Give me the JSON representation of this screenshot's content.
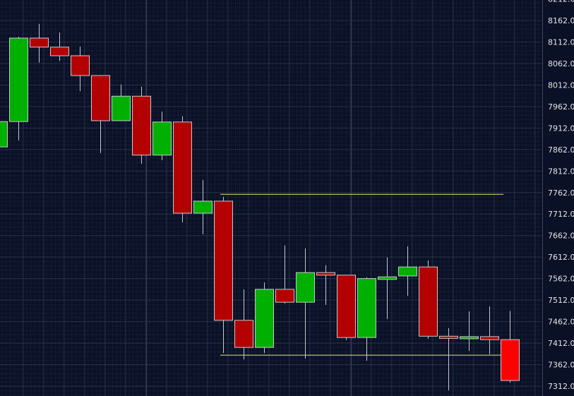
{
  "chart_data": {
    "type": "candlestick",
    "title": "",
    "xlabel": "",
    "ylabel": "",
    "ylim": [
      7295,
      8222
    ],
    "y_ticks": [
      "8212.0",
      "8162.0",
      "8112.0",
      "8062.0",
      "8012.0",
      "7962.0",
      "7912.0",
      "7862.0",
      "7812.0",
      "7762.0",
      "7712.0",
      "7662.0",
      "7612.0",
      "7562.0",
      "7512.0",
      "7462.0",
      "7412.0",
      "7362.0",
      "7312.0"
    ],
    "grid": true,
    "colors": {
      "background": "#0a1126",
      "up": "#00b000",
      "down": "#b30000",
      "current": "#ff0000",
      "outline": "#c8c8c8",
      "wick": "#c8c8c8",
      "level": "#e8e84a",
      "axis_text": "#e6e6e6"
    },
    "candles": [
      {
        "o": 7868,
        "h": 7935,
        "l": 7860,
        "c": 7927
      },
      {
        "o": 7927,
        "h": 8124,
        "l": 7883,
        "c": 8121
      },
      {
        "o": 8121,
        "h": 8154,
        "l": 8064,
        "c": 8100
      },
      {
        "o": 8100,
        "h": 8134,
        "l": 8068,
        "c": 8080
      },
      {
        "o": 8080,
        "h": 8101,
        "l": 7998,
        "c": 8034
      },
      {
        "o": 8034,
        "h": 8034,
        "l": 7854,
        "c": 7929
      },
      {
        "o": 7929,
        "h": 8013,
        "l": 7929,
        "c": 7986
      },
      {
        "o": 7986,
        "h": 8008,
        "l": 7829,
        "c": 7849
      },
      {
        "o": 7849,
        "h": 7950,
        "l": 7837,
        "c": 7926
      },
      {
        "o": 7926,
        "h": 7939,
        "l": 7693,
        "c": 7714
      },
      {
        "o": 7714,
        "h": 7791,
        "l": 7665,
        "c": 7742
      },
      {
        "o": 7742,
        "h": 7752,
        "l": 7389,
        "c": 7465
      },
      {
        "o": 7465,
        "h": 7537,
        "l": 7374,
        "c": 7402
      },
      {
        "o": 7402,
        "h": 7553,
        "l": 7389,
        "c": 7537
      },
      {
        "o": 7537,
        "h": 7639,
        "l": 7504,
        "c": 7507
      },
      {
        "o": 7507,
        "h": 7632,
        "l": 7376,
        "c": 7576
      },
      {
        "o": 7576,
        "h": 7593,
        "l": 7501,
        "c": 7570
      },
      {
        "o": 7570,
        "h": 7570,
        "l": 7419,
        "c": 7425
      },
      {
        "o": 7425,
        "h": 7565,
        "l": 7371,
        "c": 7562
      },
      {
        "o": 7560,
        "h": 7611,
        "l": 7468,
        "c": 7566
      },
      {
        "o": 7568,
        "h": 7637,
        "l": 7522,
        "c": 7589
      },
      {
        "o": 7589,
        "h": 7604,
        "l": 7422,
        "c": 7428
      },
      {
        "o": 7428,
        "h": 7447,
        "l": 7302,
        "c": 7424
      },
      {
        "o": 7424,
        "h": 7486,
        "l": 7394,
        "c": 7427
      },
      {
        "o": 7427,
        "h": 7497,
        "l": 7386,
        "c": 7420
      },
      {
        "o": 7420,
        "h": 7487,
        "l": 7320,
        "c": 7325,
        "current": true
      }
    ],
    "levels": [
      {
        "name": "resistance",
        "value": 7758,
        "from_index": 11,
        "to_index": 24
      },
      {
        "name": "support",
        "value": 7384,
        "from_index": 11,
        "to_index": 24
      }
    ]
  }
}
